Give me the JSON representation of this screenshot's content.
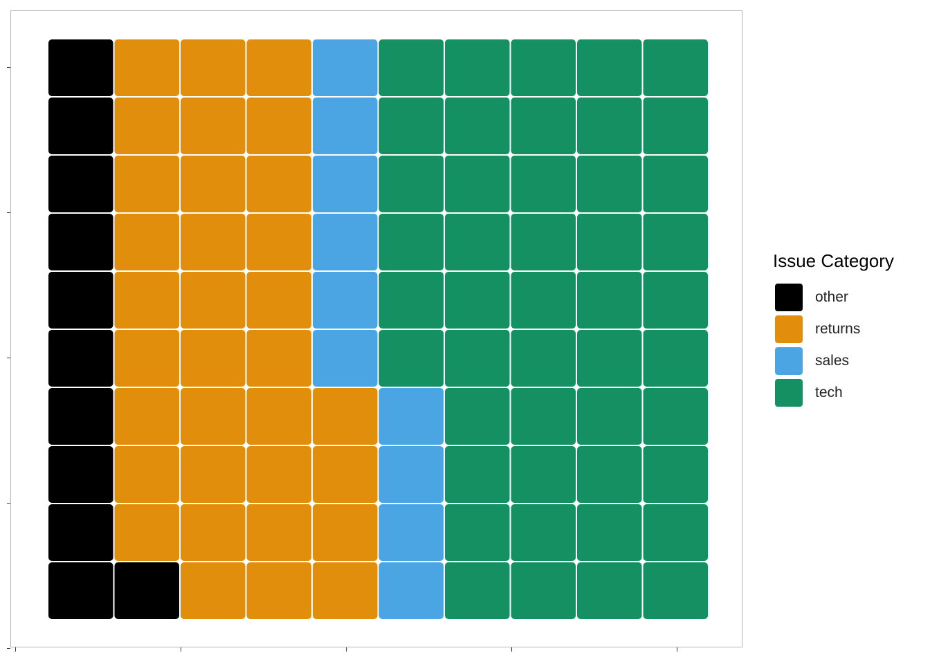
{
  "chart_data": {
    "type": "waffle",
    "legend": {
      "title": "Issue Category",
      "position": "right",
      "entries": [
        {
          "label": "other",
          "color": "#000000"
        },
        {
          "label": "returns",
          "color": "#E08E0B"
        },
        {
          "label": "sales",
          "color": "#4BA5E3"
        },
        {
          "label": "tech",
          "color": "#159063"
        }
      ]
    },
    "grid_columns": 10,
    "grid_rows": 10,
    "counts": {
      "other": 11,
      "returns": 33,
      "sales": 10,
      "tech": 46
    },
    "fill_order": "column-wise, bottom to top, left to right",
    "axis_ticks": {
      "x": 5,
      "y": 5
    },
    "tick_labels_shown": false,
    "gridlines": false
  }
}
